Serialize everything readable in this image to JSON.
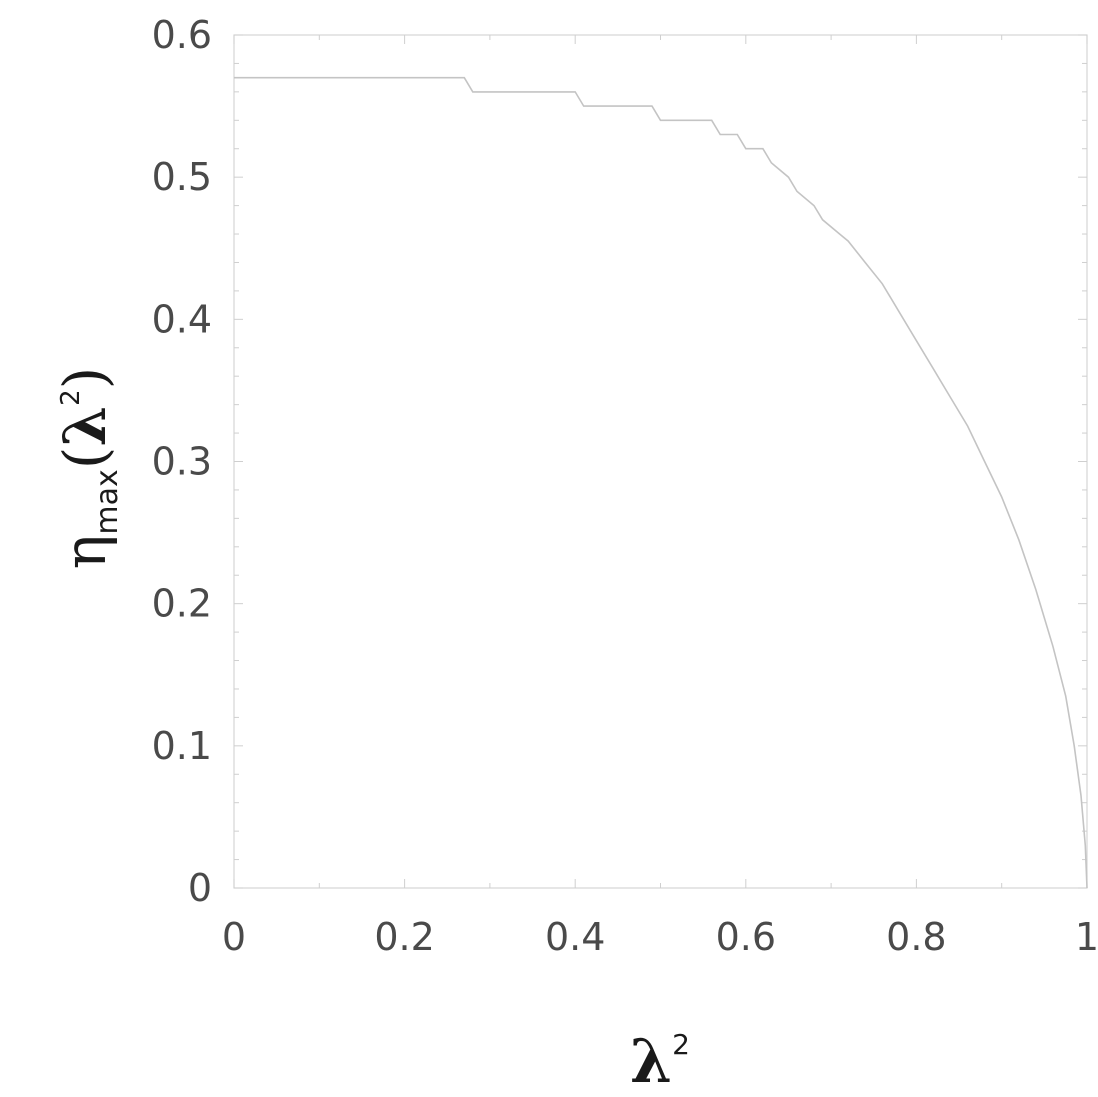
{
  "chart_data": {
    "type": "line",
    "xlabel": "λ²",
    "ylabel": "η_max(λ²)",
    "xlim": [
      0,
      1
    ],
    "ylim": [
      0,
      0.6
    ],
    "x_ticks": [
      "0",
      "0.2",
      "0.4",
      "0.6",
      "0.8",
      "1"
    ],
    "y_ticks": [
      "0",
      "0.1",
      "0.2",
      "0.3",
      "0.4",
      "0.5",
      "0.6"
    ],
    "grid": false,
    "series": [
      {
        "x": [
          0,
          0.27,
          0.28,
          0.4,
          0.41,
          0.49,
          0.5,
          0.56,
          0.57,
          0.59,
          0.6,
          0.62,
          0.63,
          0.65,
          0.66,
          0.68,
          0.69,
          0.71,
          0.72,
          0.74,
          0.76,
          0.78,
          0.8,
          0.82,
          0.84,
          0.86,
          0.88,
          0.9,
          0.92,
          0.94,
          0.96,
          0.975,
          0.985,
          0.993,
          0.998,
          1.0
        ],
        "y": [
          0.57,
          0.57,
          0.56,
          0.56,
          0.55,
          0.55,
          0.54,
          0.54,
          0.53,
          0.53,
          0.52,
          0.52,
          0.51,
          0.5,
          0.49,
          0.48,
          0.47,
          0.46,
          0.455,
          0.44,
          0.425,
          0.405,
          0.385,
          0.365,
          0.345,
          0.325,
          0.3,
          0.275,
          0.245,
          0.21,
          0.17,
          0.135,
          0.1,
          0.065,
          0.03,
          0.0
        ]
      }
    ]
  }
}
